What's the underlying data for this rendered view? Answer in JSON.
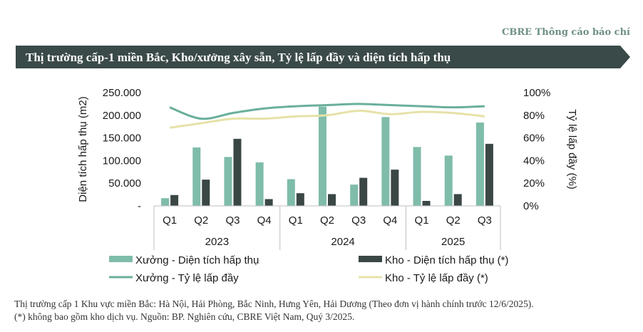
{
  "header": {
    "brand": "CBRE Thông cáo báo chí",
    "title": "Thị trường cấp-1 miền Bắc, Kho/xưởng xây sẵn, Tỷ lệ lấp đầy và diện tích hấp thụ"
  },
  "colors": {
    "banner": "#3a4a48",
    "factory_bar": "#7fbcaa",
    "warehouse_bar": "#3a4745",
    "factory_line": "#6aaf9c",
    "warehouse_line": "#e6e2a8"
  },
  "chart_data": {
    "type": "bar",
    "title": "",
    "xlabel": "",
    "ylabel": "Diện tích hấp thụ (m2)",
    "y2label": "Tỷ lệ lấp đầy (%)",
    "ylim": [
      0,
      250000
    ],
    "y2lim": [
      0,
      100
    ],
    "y_ticks": [
      "-",
      "50.000",
      "100.000",
      "150.000",
      "200.000",
      "250.000"
    ],
    "y2_ticks": [
      "0%",
      "20%",
      "40%",
      "60%",
      "80%",
      "100%"
    ],
    "categories": [
      "Q1",
      "Q2",
      "Q3",
      "Q4",
      "Q1",
      "Q2",
      "Q3",
      "Q4",
      "Q1",
      "Q2",
      "Q3"
    ],
    "groups": [
      {
        "label": "2023",
        "count": 4
      },
      {
        "label": "2024",
        "count": 4
      },
      {
        "label": "2025",
        "count": 3
      }
    ],
    "series": [
      {
        "name": "Xưởng - Diện tích hấp thụ",
        "type": "bar",
        "axis": "left",
        "values": [
          17000,
          129000,
          108000,
          96000,
          59000,
          219000,
          47000,
          196000,
          130000,
          111000,
          184000
        ]
      },
      {
        "name": "Kho - Diện tích hấp thụ (*)",
        "type": "bar",
        "axis": "left",
        "values": [
          24000,
          58000,
          148000,
          15000,
          28000,
          26000,
          62000,
          80000,
          11000,
          26000,
          137000
        ]
      },
      {
        "name": "Xưởng - Tỷ lệ lấp đầy",
        "type": "line",
        "axis": "right",
        "values": [
          87,
          77,
          82,
          86,
          88,
          89,
          90,
          89,
          88,
          87,
          88
        ]
      },
      {
        "name": "Kho - Tỷ lệ lấp đầy (*)",
        "type": "line",
        "axis": "right",
        "values": [
          69,
          73,
          77,
          77,
          79,
          80,
          84,
          81,
          83,
          82,
          79
        ]
      }
    ],
    "legend_position": "bottom",
    "grid": false
  },
  "footnote": {
    "line1": "Thị trường cấp 1 Khu vực miền Bắc: Hà Nội, Hải Phòng, Bắc Ninh, Hưng Yên, Hải Dương (Theo đơn vị hành chính trước 12/6/2025).",
    "line2": "(*) không bao gồm kho dịch vụ. Nguồn: BP. Nghiên cứu, CBRE Việt Nam, Quý 3/2025."
  }
}
